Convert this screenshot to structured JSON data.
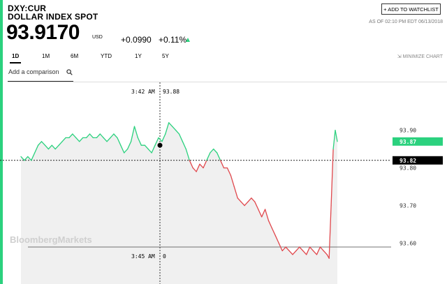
{
  "quote": {
    "ticker": "DXY:CUR",
    "name": "DOLLAR INDEX SPOT",
    "price": "93.9170",
    "currency": "USD",
    "change": "+0.0990",
    "change_pct": "+0.11%",
    "direction_icon": "up-triangle-icon"
  },
  "header": {
    "watchlist_label": "+ ADD TO WATCHLIST",
    "as_of": "AS OF 02:10 PM EDT 06/13/2018"
  },
  "range_tabs": [
    "1D",
    "1M",
    "6M",
    "YTD",
    "1Y",
    "5Y"
  ],
  "active_tab": "1D",
  "minimize_label": "MINIMIZE CHART",
  "compare": {
    "placeholder": "Add a comparison"
  },
  "watermark": "BloombergMarkets",
  "colors": {
    "accent": "#2bd17e",
    "up_line": "#2bd17e",
    "down_line": "#e0474c",
    "area_fill": "#f0f0f0",
    "previous_close_tag": "#000000",
    "current_price_tag": "#2bd17e"
  },
  "chart_data": {
    "type": "line",
    "ylim": [
      93.54,
      93.99
    ],
    "y_ticks": [
      "93.90",
      "93.80",
      "93.70",
      "93.60"
    ],
    "previous_close": 93.82,
    "previous_close_label": "93.82",
    "last_label": "93.87",
    "crosshair_time_label": "3:42 AM",
    "crosshair_value_label": "93.88",
    "bottom_time_label": "3:45 AM",
    "bottom_value_label": "0",
    "series": [
      {
        "x": [
          0,
          5,
          10,
          15,
          20,
          25,
          30,
          35,
          40,
          45,
          50,
          55,
          60,
          65,
          70,
          75,
          80,
          85,
          90,
          95,
          100,
          105,
          110,
          115,
          120,
          125,
          130,
          135,
          140,
          145,
          150,
          155,
          160,
          165,
          170,
          175,
          180,
          185,
          190,
          195,
          200,
          205,
          210,
          215,
          220,
          225,
          230,
          235,
          240,
          245,
          250,
          255,
          260,
          265,
          270,
          275,
          280,
          285,
          290,
          295,
          300,
          305,
          310,
          315,
          320,
          325,
          330,
          335,
          340,
          345,
          350,
          355,
          360,
          365,
          370,
          375,
          380,
          385,
          390,
          395,
          400,
          405,
          410,
          415,
          420,
          425,
          430,
          435,
          440,
          445,
          448,
          451,
          454,
          457,
          460
        ],
        "values": [
          93.83,
          93.82,
          93.83,
          93.82,
          93.84,
          93.86,
          93.87,
          93.86,
          93.85,
          93.86,
          93.85,
          93.86,
          93.87,
          93.88,
          93.88,
          93.89,
          93.88,
          93.87,
          93.88,
          93.88,
          93.89,
          93.88,
          93.88,
          93.89,
          93.88,
          93.87,
          93.88,
          93.89,
          93.88,
          93.86,
          93.84,
          93.85,
          93.87,
          93.91,
          93.88,
          93.86,
          93.86,
          93.85,
          93.84,
          93.86,
          93.88,
          93.87,
          93.89,
          93.92,
          93.91,
          93.9,
          93.89,
          93.87,
          93.85,
          93.82,
          93.8,
          93.79,
          93.81,
          93.8,
          93.82,
          93.84,
          93.85,
          93.84,
          93.82,
          93.8,
          93.8,
          93.78,
          93.75,
          93.72,
          93.71,
          93.7,
          93.71,
          93.72,
          93.71,
          93.69,
          93.67,
          93.69,
          93.66,
          93.64,
          93.62,
          93.6,
          93.58,
          93.59,
          93.58,
          93.57,
          93.58,
          93.59,
          93.58,
          93.57,
          93.59,
          93.58,
          93.57,
          93.59,
          93.58,
          93.57,
          93.56,
          93.7,
          93.85,
          93.9,
          93.87
        ]
      }
    ]
  }
}
